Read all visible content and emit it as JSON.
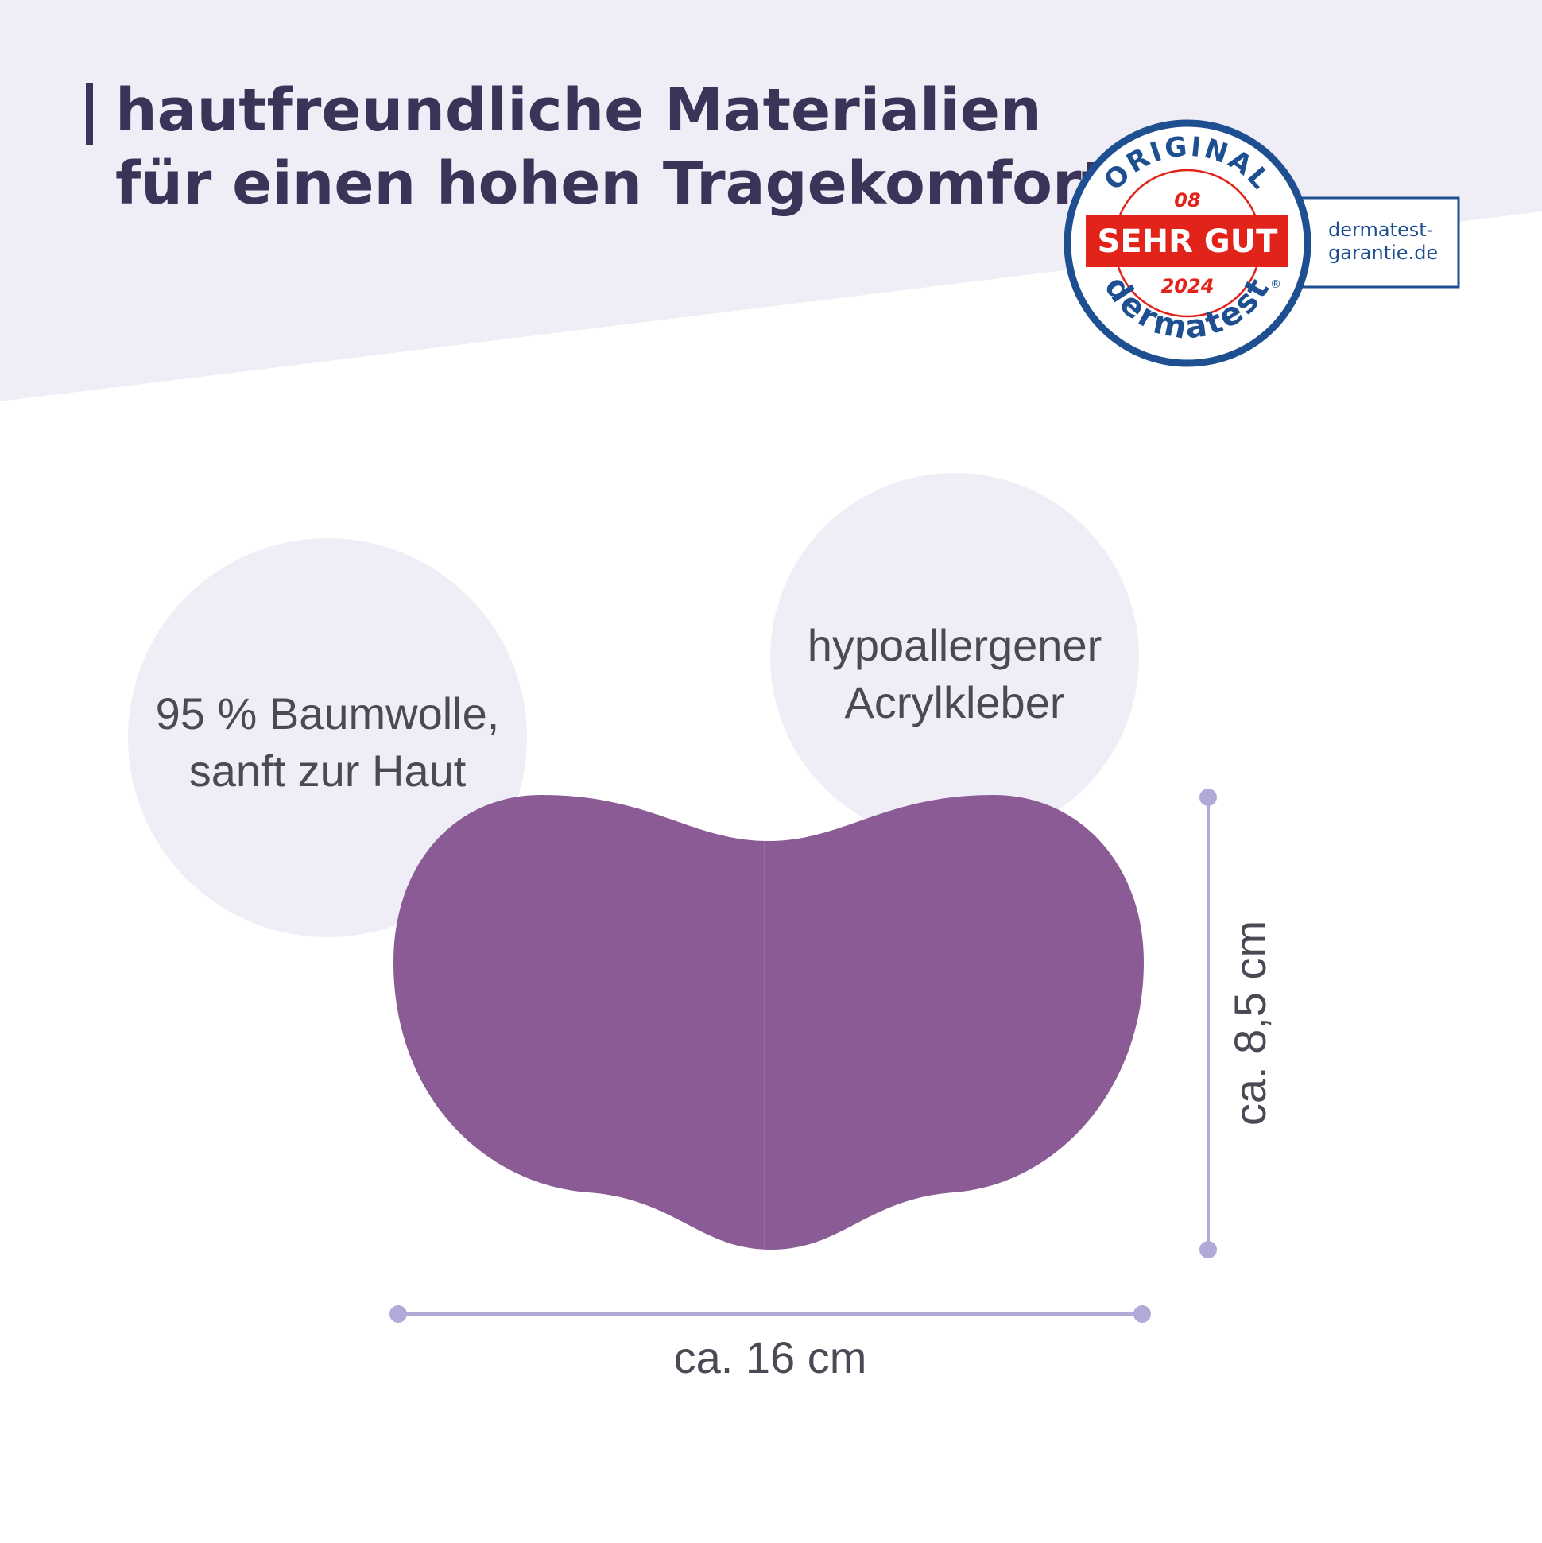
{
  "heading": {
    "lines": [
      "hautfreundliche Materialien",
      "für einen hohen Tragekomfort"
    ]
  },
  "badge": {
    "top": "ORIGINAL",
    "number": "08",
    "rating": "SEHR GUT",
    "year": "2024",
    "brand": "dermatest",
    "registered": "®",
    "site": [
      "dermatest-",
      "garantie.de"
    ]
  },
  "features": [
    {
      "lines": [
        "95 % Baumwolle,",
        "sanft zur Haut"
      ]
    },
    {
      "lines": [
        "hypoallergener",
        "Acrylkleber"
      ]
    }
  ],
  "dimensions": {
    "width": "ca. 16 cm",
    "height": "ca. 8,5 cm"
  }
}
